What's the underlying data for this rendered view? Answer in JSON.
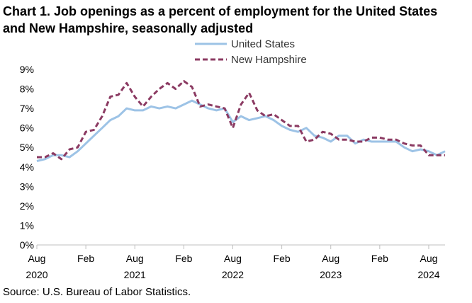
{
  "chart_data": {
    "type": "line",
    "title": "Chart 1. Job openings as a percent of employment for the United States and New Hampshire, seasonally adjusted",
    "xlabel": "",
    "ylabel": "",
    "ylim": [
      0,
      9
    ],
    "y_ticks": [
      "0%",
      "1%",
      "2%",
      "3%",
      "4%",
      "5%",
      "6%",
      "7%",
      "8%",
      "9%"
    ],
    "x_start": "2020-08",
    "x_ticks": [
      {
        "index": 0,
        "month": "Aug",
        "year": "2020"
      },
      {
        "index": 6,
        "month": "Feb",
        "year": ""
      },
      {
        "index": 12,
        "month": "Aug",
        "year": "2021"
      },
      {
        "index": 18,
        "month": "Feb",
        "year": ""
      },
      {
        "index": 24,
        "month": "Aug",
        "year": "2022"
      },
      {
        "index": 30,
        "month": "Feb",
        "year": ""
      },
      {
        "index": 36,
        "month": "Aug",
        "year": "2023"
      },
      {
        "index": 42,
        "month": "Feb",
        "year": ""
      },
      {
        "index": 48,
        "month": "Aug",
        "year": "2024"
      }
    ],
    "legend_position": "top-center",
    "grid": false,
    "series": [
      {
        "name": "United States",
        "color": "#9DC3E6",
        "style": "solid",
        "values": [
          4.3,
          4.4,
          4.6,
          4.6,
          4.5,
          4.8,
          5.2,
          5.6,
          6.0,
          6.4,
          6.6,
          7.0,
          6.9,
          6.9,
          7.1,
          7.0,
          7.1,
          7.0,
          7.2,
          7.4,
          7.2,
          7.0,
          6.9,
          7.0,
          6.3,
          6.6,
          6.4,
          6.5,
          6.6,
          6.4,
          6.1,
          5.9,
          5.8,
          6.0,
          5.6,
          5.5,
          5.3,
          5.6,
          5.6,
          5.2,
          5.4,
          5.3,
          5.3,
          5.3,
          5.3,
          5.0,
          4.8,
          4.9,
          4.8,
          4.6,
          4.8
        ]
      },
      {
        "name": "New Hampshire",
        "color": "#8B3A62",
        "style": "dashed",
        "values": [
          4.5,
          4.5,
          4.7,
          4.4,
          4.9,
          5.0,
          5.8,
          5.9,
          6.6,
          7.6,
          7.7,
          8.3,
          7.6,
          7.1,
          7.6,
          8.0,
          8.3,
          8.0,
          8.4,
          8.1,
          7.1,
          7.2,
          7.1,
          7.0,
          6.0,
          7.2,
          7.8,
          6.9,
          6.6,
          6.7,
          6.4,
          6.1,
          6.1,
          5.3,
          5.4,
          5.8,
          5.7,
          5.4,
          5.4,
          5.3,
          5.3,
          5.5,
          5.5,
          5.4,
          5.4,
          5.2,
          5.1,
          5.1,
          4.6,
          4.6,
          4.6
        ]
      }
    ]
  },
  "source": "Source: U.S. Bureau of Labor Statistics."
}
